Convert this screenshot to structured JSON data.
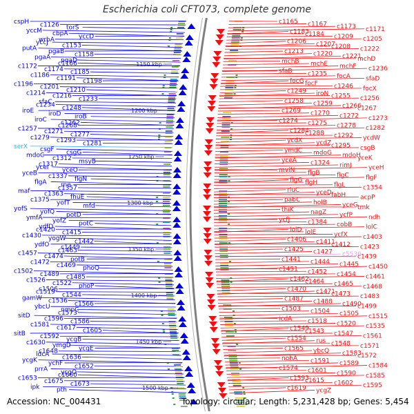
{
  "title": "Escherichia coli CFT073, complete genome",
  "footer": {
    "accession": "Accession: NC_004431",
    "summary": "Topology: circular; Length: 5,231,428 bp; Genes: 5,454"
  },
  "colors": {
    "left_strand": "#0000e6",
    "right_strand": "#f01010",
    "highlight_left": "#33b5e5",
    "highlight_right": "#e8a0e8",
    "backbone": "#7f7f7f"
  },
  "scale_ticks": [
    "1150 kbp",
    "1200 kbp",
    "1250 kbp",
    "1300 kbp",
    "1350 kbp",
    "1400 kbp",
    "1450 kbp",
    "1500 kbp"
  ],
  "left_labels": [
    [
      "cspH",
      ""
    ],
    [
      "c1126",
      ""
    ],
    [
      "torS",
      ""
    ],
    [
      "yccM",
      ""
    ],
    [
      "cbpA",
      ""
    ],
    [
      "yccD",
      ""
    ],
    [
      "wrbA",
      ""
    ],
    [
      "yccJ",
      ""
    ],
    [
      "c1153",
      ""
    ],
    [
      "putA",
      ""
    ],
    [
      "pgaB",
      ""
    ],
    [
      "c1158",
      ""
    ],
    [
      "pgaA",
      ""
    ],
    [
      "pgaD",
      ""
    ],
    [
      "c1166",
      ""
    ],
    [
      "c1172",
      ""
    ],
    [
      "c1174",
      ""
    ],
    [
      "c1185",
      ""
    ],
    [
      "c1186",
      ""
    ],
    [
      "c1191",
      ""
    ],
    [
      "c1198",
      ""
    ],
    [
      "c1196",
      ""
    ],
    [
      "c1201",
      ""
    ],
    [
      "c1210",
      ""
    ],
    [
      "c1214",
      ""
    ],
    [
      "c1216",
      ""
    ],
    [
      "c1233",
      ""
    ],
    [
      "sfaC",
      ""
    ],
    [
      "c1234",
      ""
    ],
    [
      "c1248",
      ""
    ],
    [
      "iroE",
      ""
    ],
    [
      "iroD",
      ""
    ],
    [
      "iroB",
      ""
    ],
    [
      "iroC",
      ""
    ],
    [
      "c1262",
      ""
    ],
    [
      "c1268",
      ""
    ],
    [
      "c1257",
      ""
    ],
    [
      "c1271",
      ""
    ],
    [
      "c1277",
      ""
    ],
    [
      "c1279",
      ""
    ],
    [
      "c1293",
      ""
    ],
    [
      "c1281",
      ""
    ],
    [
      "serX",
      "hl"
    ],
    [
      "csgF",
      ""
    ],
    [
      "csgG",
      ""
    ],
    [
      "mdoC",
      ""
    ],
    [
      "c1312",
      ""
    ],
    [
      "msyB",
      ""
    ],
    [
      "c1317",
      ""
    ],
    [
      "yceI",
      ""
    ],
    [
      "yceO",
      ""
    ],
    [
      "yceB",
      ""
    ],
    [
      "c1337",
      ""
    ],
    [
      "flgN",
      ""
    ],
    [
      "flgA",
      ""
    ],
    [
      "rne",
      ""
    ],
    [
      "c1357",
      ""
    ],
    [
      "maf",
      ""
    ],
    [
      "c1363",
      ""
    ],
    [
      "fhuE",
      ""
    ],
    [
      "c1375",
      ""
    ],
    [
      "yofT",
      ""
    ],
    [
      "mfd",
      ""
    ],
    [
      "yofS",
      ""
    ],
    [
      "yofQ",
      ""
    ],
    [
      "potD",
      ""
    ],
    [
      "ymfA",
      ""
    ],
    [
      "yofZ",
      ""
    ],
    [
      "potC",
      ""
    ],
    [
      "ydfD",
      ""
    ],
    [
      "c1420",
      ""
    ],
    [
      "c1415",
      ""
    ],
    [
      "c1430",
      ""
    ],
    [
      "yogW",
      ""
    ],
    [
      "c1442",
      ""
    ],
    [
      "ydfO",
      ""
    ],
    [
      "c1449",
      ""
    ],
    [
      "c1463",
      ""
    ],
    [
      "c1457",
      ""
    ],
    [
      "c1474",
      ""
    ],
    [
      "potB",
      ""
    ],
    [
      "c1472",
      ""
    ],
    [
      "c1469",
      ""
    ],
    [
      "phoQ",
      ""
    ],
    [
      "c1502",
      ""
    ],
    [
      "c1489",
      ""
    ],
    [
      "c1485",
      ""
    ],
    [
      "c1526",
      ""
    ],
    [
      "c1522",
      ""
    ],
    [
      "phoP",
      ""
    ],
    [
      "c1506",
      ""
    ],
    [
      "c1519",
      ""
    ],
    [
      "c1544",
      ""
    ],
    [
      "gamW",
      ""
    ],
    [
      "c1536",
      ""
    ],
    [
      "c1566",
      ""
    ],
    [
      "ybcU",
      ""
    ],
    [
      "nmpC",
      ""
    ],
    [
      "c1573",
      ""
    ],
    [
      "sitD",
      ""
    ],
    [
      "c1596",
      ""
    ],
    [
      "c1586",
      ""
    ],
    [
      "c1581",
      ""
    ],
    [
      "c1617",
      ""
    ],
    [
      "c1605",
      ""
    ],
    [
      "sitB",
      ""
    ],
    [
      "c1592",
      ""
    ],
    [
      "ycgB",
      ""
    ],
    [
      "c1630",
      ""
    ],
    [
      "ymgD",
      ""
    ],
    [
      "ycgE",
      ""
    ],
    [
      "c1648",
      ""
    ],
    [
      "ldcA",
      ""
    ],
    [
      "c1636",
      ""
    ],
    [
      "ycgK",
      ""
    ],
    [
      "ychF",
      ""
    ],
    [
      "c1652",
      ""
    ],
    [
      "prrA",
      ""
    ],
    [
      "ycgO",
      ""
    ],
    [
      "c1660",
      ""
    ],
    [
      "c1653",
      ""
    ],
    [
      "c1675",
      ""
    ],
    [
      "c1673",
      ""
    ],
    [
      "ipk",
      ""
    ],
    [
      "pth",
      ""
    ]
  ],
  "right_labels": [
    [
      "c1165",
      ""
    ],
    [
      "c1167",
      ""
    ],
    [
      "c1173",
      ""
    ],
    [
      "c1171",
      ""
    ],
    [
      "c1183",
      ""
    ],
    [
      "c1184",
      ""
    ],
    [
      "c1209",
      ""
    ],
    [
      "c1205",
      ""
    ],
    [
      "c1206",
      ""
    ],
    [
      "c1207",
      ""
    ],
    [
      "c1208",
      ""
    ],
    [
      "c1222",
      ""
    ],
    [
      "c1213",
      ""
    ],
    [
      "c1220",
      ""
    ],
    [
      "c1221",
      ""
    ],
    [
      "mchD",
      ""
    ],
    [
      "mchB",
      ""
    ],
    [
      "mchE",
      ""
    ],
    [
      "mchF",
      ""
    ],
    [
      "c1236",
      ""
    ],
    [
      "sfaB",
      ""
    ],
    [
      "c1235",
      ""
    ],
    [
      "focA",
      ""
    ],
    [
      "sfaD",
      ""
    ],
    [
      "focG",
      ""
    ],
    [
      "focF",
      ""
    ],
    [
      "c1246",
      ""
    ],
    [
      "focX",
      ""
    ],
    [
      "c1249",
      ""
    ],
    [
      "iroN",
      ""
    ],
    [
      "c1255",
      ""
    ],
    [
      "c1256",
      ""
    ],
    [
      "c1258",
      ""
    ],
    [
      "c1259",
      ""
    ],
    [
      "c1266",
      ""
    ],
    [
      "c1267",
      ""
    ],
    [
      "c1269",
      ""
    ],
    [
      "c1270",
      ""
    ],
    [
      "c1272",
      ""
    ],
    [
      "c1273",
      ""
    ],
    [
      "c1274",
      ""
    ],
    [
      "c1275",
      ""
    ],
    [
      "c1278",
      ""
    ],
    [
      "c1282",
      ""
    ],
    [
      "c1284",
      ""
    ],
    [
      "c1288",
      ""
    ],
    [
      "c1292",
      ""
    ],
    [
      "ycdW",
      ""
    ],
    [
      "ycdX",
      ""
    ],
    [
      "ycdZ",
      ""
    ],
    [
      "c1295",
      ""
    ],
    [
      "csgB",
      ""
    ],
    [
      "ymdC",
      ""
    ],
    [
      "mdoG",
      ""
    ],
    [
      "mdoH",
      ""
    ],
    [
      "yceK",
      ""
    ],
    [
      "yceA",
      ""
    ],
    [
      "c1324",
      ""
    ],
    [
      "rimJ",
      ""
    ],
    [
      "yceH",
      ""
    ],
    [
      "mviN",
      ""
    ],
    [
      "flgB",
      ""
    ],
    [
      "flgC",
      ""
    ],
    [
      "flgF",
      ""
    ],
    [
      "flgG",
      ""
    ],
    [
      "flgH",
      ""
    ],
    [
      "flgL",
      ""
    ],
    [
      "c1354",
      ""
    ],
    [
      "rluC",
      ""
    ],
    [
      "yceD",
      ""
    ],
    [
      "fabH",
      ""
    ],
    [
      "acpP",
      ""
    ],
    [
      "pabC",
      ""
    ],
    [
      "holB",
      ""
    ],
    [
      "yceG",
      ""
    ],
    [
      "tmk",
      ""
    ],
    [
      "thiK",
      ""
    ],
    [
      "nagZ",
      ""
    ],
    [
      "ycfP",
      ""
    ],
    [
      "ndh",
      ""
    ],
    [
      "ycfJ",
      ""
    ],
    [
      "c1384",
      ""
    ],
    [
      "cobB",
      ""
    ],
    [
      "lolC",
      ""
    ],
    [
      "lolD",
      ""
    ],
    [
      "lolE",
      ""
    ],
    [
      "ycfX",
      ""
    ],
    [
      "c1403",
      ""
    ],
    [
      "c1406",
      ""
    ],
    [
      "c1411",
      ""
    ],
    [
      "c1412",
      ""
    ],
    [
      "c1423",
      ""
    ],
    [
      "c1425",
      ""
    ],
    [
      "c1427",
      ""
    ],
    [
      "c5536",
      "hl"
    ],
    [
      "c1439",
      ""
    ],
    [
      "c1441",
      ""
    ],
    [
      "c1444",
      ""
    ],
    [
      "c1445",
      ""
    ],
    [
      "c1450",
      ""
    ],
    [
      "c1451",
      ""
    ],
    [
      "c1452",
      ""
    ],
    [
      "c1454",
      ""
    ],
    [
      "c1461",
      ""
    ],
    [
      "c1462",
      ""
    ],
    [
      "c1464",
      ""
    ],
    [
      "c1465",
      ""
    ],
    [
      "c1468",
      ""
    ],
    [
      "c1470",
      ""
    ],
    [
      "c1471",
      ""
    ],
    [
      "c1473",
      ""
    ],
    [
      "c1483",
      ""
    ],
    [
      "c1487",
      ""
    ],
    [
      "c1488",
      ""
    ],
    [
      "c1490",
      ""
    ],
    [
      "c1499",
      ""
    ],
    [
      "c1503",
      ""
    ],
    [
      "c1504",
      ""
    ],
    [
      "c1505",
      ""
    ],
    [
      "c1515",
      ""
    ],
    [
      "icdA",
      ""
    ],
    [
      "c1518",
      ""
    ],
    [
      "c1520",
      ""
    ],
    [
      "c1535",
      ""
    ],
    [
      "c1549",
      ""
    ],
    [
      "c1543",
      ""
    ],
    [
      "c1547",
      ""
    ],
    [
      "c1561",
      ""
    ],
    [
      "c1554",
      ""
    ],
    [
      "rus",
      ""
    ],
    [
      "c1548",
      ""
    ],
    [
      "c1571",
      ""
    ],
    [
      "c1565",
      ""
    ],
    [
      "ybcQ",
      ""
    ],
    [
      "c1583",
      ""
    ],
    [
      "c1572",
      ""
    ],
    [
      "nohA",
      ""
    ],
    [
      "c1591",
      ""
    ],
    [
      "c1589",
      ""
    ],
    [
      "c1584",
      ""
    ],
    [
      "c1574",
      ""
    ],
    [
      "c1601",
      ""
    ],
    [
      "c1590",
      ""
    ],
    [
      "c1585",
      ""
    ],
    [
      "c1593",
      ""
    ],
    [
      "c1615",
      ""
    ],
    [
      "c1602",
      ""
    ],
    [
      "c1595",
      ""
    ],
    [
      "c1619",
      ""
    ],
    [
      "ycgZ",
      ""
    ]
  ]
}
